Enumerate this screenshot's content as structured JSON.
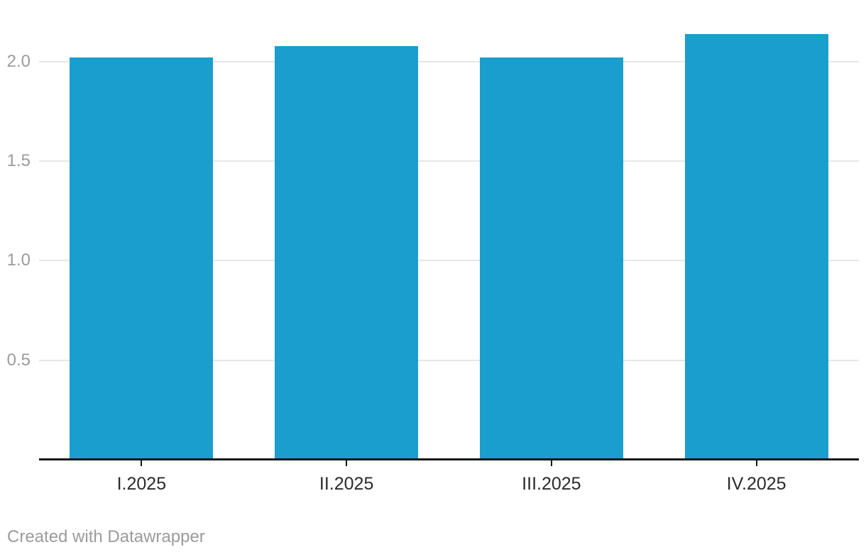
{
  "chart_data": {
    "type": "bar",
    "categories": [
      "I.2025",
      "II.2025",
      "III.2025",
      "IV.2025"
    ],
    "values": [
      2.02,
      2.08,
      2.02,
      2.14
    ],
    "title": "",
    "xlabel": "",
    "ylabel": "",
    "ylim": [
      0,
      2.31
    ],
    "yticks": [
      0.5,
      1.0,
      1.5,
      2.0
    ],
    "ytick_labels": [
      "0.5",
      "1.0",
      "1.5",
      "2.0"
    ],
    "grid": "horizontal",
    "legend": "none"
  },
  "colors": {
    "bar": "#199ecd",
    "gridline": "#e7e7e7",
    "axis_line": "#161616",
    "y_label": "#9c9c9c",
    "x_label": "#2b2b2b",
    "credit": "#9b9b9b",
    "background": "#ffffff"
  },
  "footer": {
    "credit": "Created with Datawrapper"
  }
}
